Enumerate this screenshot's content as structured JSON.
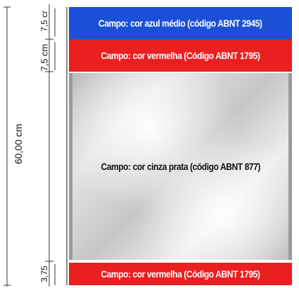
{
  "dimensions": {
    "total": "60,00 cm",
    "band1": "7,5 cr",
    "band2": "7,5 cm",
    "band4": "3,75"
  },
  "bands": [
    {
      "label": "Campo: cor azul médio (código ABNT 2945)",
      "color": "#1b4fd8"
    },
    {
      "label": "Campo: cor vermelha (Código ABNT 1795)",
      "color": "#ea1f1f"
    },
    {
      "label": "Campo: cor cinza prata (código ABNT 877)",
      "color": "#c8c8c8"
    },
    {
      "label": "Campo: cor vermelha (Código ABNT 1795)",
      "color": "#ea1f1f"
    }
  ]
}
